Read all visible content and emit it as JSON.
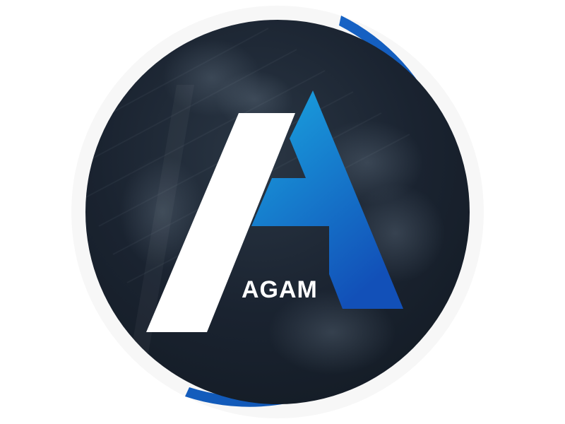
{
  "logo": {
    "brand_name": "AGAM",
    "icon": "letter-a-monogram-icon",
    "colors": {
      "page_background": "#ffffff",
      "ring_light": "#f7f7f7",
      "ring_blue": "#0c4ea8",
      "disc_dark": "#141c26",
      "disc_mid": "#2a3644",
      "letter_left": "#ffffff",
      "letter_right_top": "#1aa6e0",
      "letter_right_bottom": "#1250b8",
      "text": "#ffffff"
    }
  }
}
